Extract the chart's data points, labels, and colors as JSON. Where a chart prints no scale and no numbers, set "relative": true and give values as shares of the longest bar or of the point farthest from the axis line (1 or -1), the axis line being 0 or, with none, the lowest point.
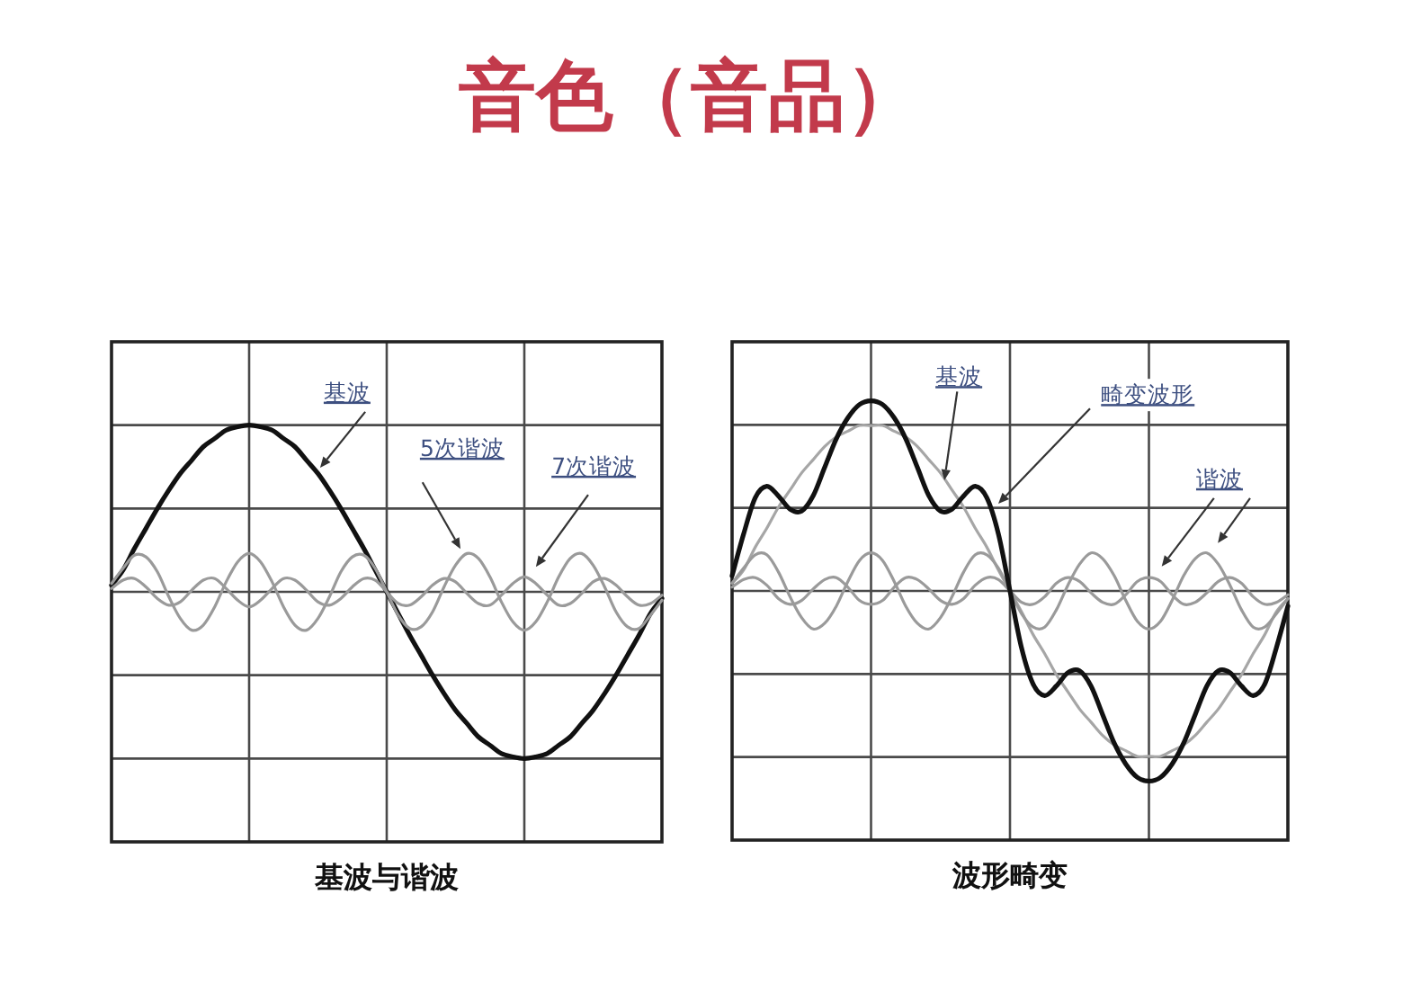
{
  "chart_data": [
    {
      "type": "line",
      "title": "音色（音品）",
      "xlabel": "基波与谐波",
      "relative": true,
      "grid": true,
      "categories": [
        null,
        null,
        null,
        null,
        null,
        null,
        null,
        null,
        null,
        null,
        null,
        null,
        null,
        null,
        null,
        null,
        null,
        null,
        null,
        null,
        null,
        null,
        null,
        null,
        null,
        null,
        null,
        null,
        null,
        null,
        null,
        null,
        null,
        null,
        null,
        null,
        null,
        null,
        null,
        null,
        null,
        null,
        null,
        null,
        null,
        null,
        null,
        null,
        null
      ],
      "series": [
        {
          "color": "#111111",
          "values": [
            0.04,
            0.13,
            0.26,
            0.38,
            0.5,
            0.61,
            0.71,
            0.79,
            0.87,
            0.92,
            0.97,
            0.99,
            1,
            0.99,
            0.97,
            0.92,
            0.87,
            0.79,
            0.71,
            0.61,
            0.5,
            0.38,
            0.26,
            0.13,
            0,
            -0.13,
            -0.26,
            -0.38,
            -0.5,
            -0.61,
            -0.71,
            -0.79,
            -0.87,
            -0.92,
            -0.97,
            -0.99,
            -1,
            -0.99,
            -0.97,
            -0.92,
            -0.87,
            -0.79,
            -0.71,
            -0.61,
            -0.5,
            -0.38,
            -0.26,
            -0.13,
            -0.04
          ]
        },
        {
          "color": "#9a9a9a",
          "values": [
            0.05,
            0.14,
            0.22,
            0.21,
            0.12,
            -0.03,
            -0.16,
            -0.23,
            -0.2,
            -0.09,
            0.06,
            0.18,
            0.23,
            0.18,
            0.06,
            -0.09,
            -0.2,
            -0.23,
            -0.16,
            -0.03,
            0.12,
            0.21,
            0.22,
            0.14,
            0,
            -0.14,
            -0.22,
            -0.21,
            -0.12,
            0.03,
            0.16,
            0.23,
            0.2,
            0.09,
            -0.06,
            -0.18,
            -0.23,
            -0.18,
            -0.06,
            0.09,
            0.2,
            0.23,
            0.16,
            0.03,
            -0.12,
            -0.21,
            -0.22,
            -0.14,
            -0.05
          ]
        },
        {
          "color": "#9a9a9a",
          "values": [
            0.02,
            0.07,
            0.08,
            0.03,
            -0.04,
            -0.08,
            -0.06,
            0.01,
            0.07,
            0.08,
            0.02,
            -0.05,
            -0.09,
            -0.05,
            0.02,
            0.08,
            0.07,
            0.01,
            -0.06,
            -0.08,
            -0.04,
            0.03,
            0.08,
            0.07,
            0,
            -0.07,
            -0.08,
            -0.03,
            0.04,
            0.08,
            0.06,
            -0.01,
            -0.07,
            -0.08,
            -0.02,
            0.05,
            0.09,
            0.05,
            -0.02,
            -0.08,
            -0.07,
            -0.01,
            0.06,
            0.08,
            0.04,
            -0.03,
            -0.08,
            -0.07,
            -0.02
          ]
        }
      ],
      "annotations": [
        "基波",
        "5次谐波",
        "7次谐波"
      ]
    },
    {
      "type": "line",
      "xlabel": "波形畸变",
      "relative": true,
      "grid": true,
      "categories": [
        null,
        null,
        null,
        null,
        null,
        null,
        null,
        null,
        null,
        null,
        null,
        null,
        null,
        null,
        null,
        null,
        null,
        null,
        null,
        null,
        null,
        null,
        null,
        null,
        null,
        null,
        null,
        null,
        null,
        null,
        null,
        null,
        null,
        null,
        null,
        null,
        null,
        null,
        null,
        null,
        null,
        null,
        null,
        null,
        null,
        null,
        null,
        null,
        null
      ],
      "series": [
        {
          "color": "#a6a6a6",
          "values": [
            0.04,
            0.11,
            0.23,
            0.33,
            0.44,
            0.53,
            0.62,
            0.69,
            0.76,
            0.81,
            0.84,
            0.87,
            0.87,
            0.87,
            0.84,
            0.81,
            0.76,
            0.69,
            0.62,
            0.53,
            0.44,
            0.33,
            0.23,
            0.11,
            0,
            -0.11,
            -0.23,
            -0.33,
            -0.44,
            -0.53,
            -0.62,
            -0.69,
            -0.76,
            -0.81,
            -0.84,
            -0.87,
            -0.87,
            -0.87,
            -0.84,
            -0.81,
            -0.76,
            -0.69,
            -0.62,
            -0.53,
            -0.44,
            -0.33,
            -0.23,
            -0.11,
            -0.04
          ]
        },
        {
          "color": "#9a9a9a",
          "values": [
            0.04,
            0.12,
            0.19,
            0.19,
            0.1,
            -0.03,
            -0.14,
            -0.2,
            -0.17,
            -0.08,
            0.05,
            0.16,
            0.2,
            0.16,
            0.05,
            -0.08,
            -0.17,
            -0.2,
            -0.14,
            -0.03,
            0.1,
            0.19,
            0.19,
            0.12,
            0,
            -0.12,
            -0.19,
            -0.19,
            -0.1,
            0.03,
            0.14,
            0.2,
            0.17,
            0.08,
            -0.05,
            -0.16,
            -0.2,
            -0.16,
            -0.05,
            0.08,
            0.17,
            0.2,
            0.14,
            0.03,
            -0.1,
            -0.19,
            -0.19,
            -0.12,
            -0.04
          ]
        },
        {
          "color": "#9a9a9a",
          "values": [
            0.02,
            0.06,
            0.07,
            0.03,
            -0.04,
            -0.07,
            -0.05,
            0.01,
            0.06,
            0.07,
            0.02,
            -0.05,
            -0.07,
            -0.05,
            0.02,
            0.07,
            0.06,
            0.01,
            -0.05,
            -0.07,
            -0.04,
            0.03,
            0.07,
            0.06,
            0,
            -0.06,
            -0.07,
            -0.03,
            0.04,
            0.07,
            0.05,
            -0.01,
            -0.06,
            -0.07,
            -0.02,
            0.05,
            0.07,
            0.05,
            -0.02,
            -0.07,
            -0.06,
            -0.01,
            0.05,
            0.07,
            0.04,
            -0.03,
            -0.07,
            -0.06,
            -0.02
          ]
        },
        {
          "color": "#111111",
          "values": [
            0.08,
            0.3,
            0.49,
            0.55,
            0.5,
            0.43,
            0.42,
            0.5,
            0.65,
            0.8,
            0.91,
            0.98,
            1,
            0.98,
            0.91,
            0.8,
            0.65,
            0.5,
            0.42,
            0.43,
            0.5,
            0.55,
            0.49,
            0.3,
            0,
            -0.3,
            -0.49,
            -0.55,
            -0.5,
            -0.43,
            -0.42,
            -0.5,
            -0.65,
            -0.8,
            -0.91,
            -0.98,
            -1,
            -0.98,
            -0.91,
            -0.8,
            -0.65,
            -0.5,
            -0.42,
            -0.43,
            -0.5,
            -0.55,
            -0.49,
            -0.3,
            -0.08
          ]
        }
      ],
      "annotations": [
        "基波",
        "畸变波形",
        "谐波"
      ]
    }
  ]
}
